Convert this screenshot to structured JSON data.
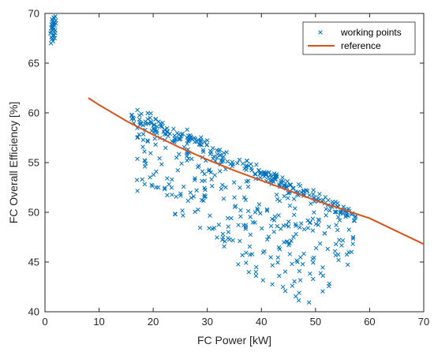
{
  "chart_data": {
    "type": "scatter",
    "xlabel": "FC Power [kW]",
    "ylabel": "FC Overall Efficiency [%]",
    "xlim": [
      0,
      70
    ],
    "ylim": [
      40,
      70
    ],
    "xticks": [
      0,
      10,
      20,
      30,
      40,
      50,
      60,
      70
    ],
    "yticks": [
      40,
      45,
      50,
      55,
      60,
      65,
      70
    ],
    "grid": false,
    "box": true,
    "legend_position": "top-right",
    "colors": {
      "working_points": "#0072BD",
      "reference": "#D95319",
      "axes": "#262626"
    },
    "series": [
      {
        "name": "working points",
        "marker": "x",
        "clusters": [
          {
            "x": [
              1.1,
              1.3,
              1.5,
              1.7,
              1.9,
              1.2,
              1.4,
              1.6,
              1.8,
              2.0,
              1.0,
              1.3,
              1.5,
              1.7,
              1.9,
              1.2,
              1.6,
              1.8,
              1.4,
              1.1,
              1.5,
              1.9,
              1.3,
              1.7,
              2.0,
              1.2,
              1.6,
              1.4,
              1.8,
              1.5
            ],
            "y": [
              67.0,
              67.4,
              67.8,
              68.1,
              68.3,
              68.5,
              68.7,
              68.9,
              69.1,
              69.3,
              68.0,
              68.6,
              69.0,
              69.5,
              69.7,
              67.6,
              68.4,
              68.8,
              69.2,
              68.2,
              67.2,
              68.0,
              69.4,
              67.8,
              69.0,
              68.9,
              69.6,
              68.3,
              67.5,
              68.6
            ]
          }
        ],
        "upper_band": {
          "x_range": [
            16,
            57.5
          ],
          "y_at_x_start": 59.8,
          "y_at_x_end": 49.6,
          "spread": 1.3,
          "count": 260
        },
        "scatter_region": {
          "count": 280,
          "rows": [
            {
              "x": 20,
              "y_min": 52.0,
              "y_max": 59.5
            },
            {
              "x": 25,
              "y_min": 49.0,
              "y_max": 57.0
            },
            {
              "x": 30,
              "y_min": 47.5,
              "y_max": 55.5
            },
            {
              "x": 35,
              "y_min": 45.0,
              "y_max": 54.0
            },
            {
              "x": 40,
              "y_min": 43.0,
              "y_max": 52.8
            },
            {
              "x": 45,
              "y_min": 41.5,
              "y_max": 51.8
            },
            {
              "x": 50,
              "y_min": 40.3,
              "y_max": 50.8
            },
            {
              "x": 55,
              "y_min": 43.5,
              "y_max": 49.8
            },
            {
              "x": 57,
              "y_min": 46.0,
              "y_max": 49.5
            }
          ]
        }
      },
      {
        "name": "reference",
        "type": "line",
        "x": [
          8,
          10,
          15,
          20,
          25,
          30,
          35,
          40,
          45,
          50,
          55,
          60,
          65,
          70
        ],
        "y": [
          61.5,
          60.8,
          59.2,
          57.8,
          56.5,
          55.3,
          54.2,
          53.2,
          52.2,
          51.2,
          50.3,
          49.4,
          48.1,
          46.8
        ]
      }
    ]
  }
}
